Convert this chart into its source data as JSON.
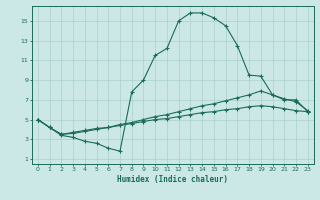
{
  "xlabel": "Humidex (Indice chaleur)",
  "bg_color": "#cce8e6",
  "grid_color": "#aacfcd",
  "line_color": "#1a6b5a",
  "xlim": [
    -0.5,
    23.5
  ],
  "ylim": [
    0.5,
    16.5
  ],
  "xticks": [
    0,
    1,
    2,
    3,
    4,
    5,
    6,
    7,
    8,
    9,
    10,
    11,
    12,
    13,
    14,
    15,
    16,
    17,
    18,
    19,
    20,
    21,
    22,
    23
  ],
  "yticks": [
    1,
    3,
    5,
    7,
    9,
    11,
    13,
    15
  ],
  "series": {
    "max": {
      "x": [
        0,
        1,
        2,
        3,
        4,
        5,
        6,
        7,
        8,
        9,
        10,
        11,
        12,
        13,
        14,
        15,
        16,
        17,
        18,
        19,
        20,
        21,
        22,
        23
      ],
      "y": [
        5.0,
        4.2,
        3.4,
        3.2,
        2.8,
        2.6,
        2.1,
        1.8,
        7.8,
        9.0,
        11.5,
        12.2,
        15.0,
        15.8,
        15.8,
        15.3,
        14.5,
        12.5,
        9.5,
        9.4,
        7.5,
        7.0,
        7.0,
        5.8
      ]
    },
    "mean": {
      "x": [
        0,
        1,
        2,
        3,
        4,
        5,
        6,
        7,
        8,
        9,
        10,
        11,
        12,
        13,
        14,
        15,
        16,
        17,
        18,
        19,
        20,
        21,
        22,
        23
      ],
      "y": [
        5.0,
        4.2,
        3.5,
        3.6,
        3.8,
        4.0,
        4.2,
        4.5,
        4.7,
        5.0,
        5.3,
        5.5,
        5.8,
        6.1,
        6.4,
        6.6,
        6.9,
        7.2,
        7.5,
        7.9,
        7.5,
        7.1,
        6.8,
        5.9
      ]
    },
    "min": {
      "x": [
        0,
        1,
        2,
        3,
        4,
        5,
        6,
        7,
        8,
        9,
        10,
        11,
        12,
        13,
        14,
        15,
        16,
        17,
        18,
        19,
        20,
        21,
        22,
        23
      ],
      "y": [
        5.0,
        4.2,
        3.5,
        3.7,
        3.9,
        4.1,
        4.2,
        4.4,
        4.6,
        4.8,
        5.0,
        5.1,
        5.3,
        5.5,
        5.7,
        5.8,
        6.0,
        6.1,
        6.3,
        6.4,
        6.3,
        6.1,
        5.9,
        5.8
      ]
    }
  }
}
